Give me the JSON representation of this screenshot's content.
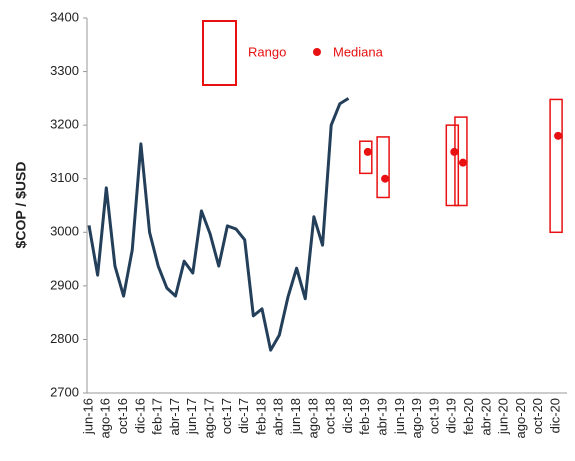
{
  "chart_data": {
    "type": "line",
    "y_label": "$COP / $USD",
    "categories": [
      "jun-16",
      null,
      "ago-16",
      null,
      "oct-16",
      null,
      "dic-16",
      null,
      "feb-17",
      null,
      "abr-17",
      null,
      "jun-17",
      null,
      "ago-17",
      null,
      "oct-17",
      null,
      "dic-17",
      null,
      "feb-18",
      null,
      "abr-18",
      null,
      "jun-18",
      null,
      "ago-18",
      null,
      "oct-18",
      null,
      "dic-18",
      null,
      "feb-19",
      null,
      "abr-19",
      null,
      "jun-19",
      null,
      "ago-19",
      null,
      "oct-19",
      null,
      "dic-19",
      null,
      "feb-20",
      null,
      "abr-20",
      null,
      "jun-20",
      null,
      "ago-20",
      null,
      "oct-20",
      null,
      "dic-20"
    ],
    "line": {
      "color": "#243f5a",
      "values": [
        3013,
        2920,
        3083,
        2937,
        2881,
        2967,
        3165,
        3000,
        2937,
        2896,
        2881,
        2946,
        2924,
        3040,
        2997,
        2937,
        3012,
        3006,
        2986,
        2844,
        2857,
        2780,
        2808,
        2879,
        2933,
        2876,
        3029,
        2976,
        3200,
        3240,
        3250,
        null,
        null,
        null,
        null,
        null,
        null,
        null,
        null,
        null,
        null,
        null,
        null,
        null,
        null,
        null,
        null,
        null,
        null,
        null,
        null,
        null,
        null,
        null,
        null
      ]
    },
    "range": {
      "name": "Rango",
      "color": "#e81010",
      "low": [
        null,
        null,
        null,
        null,
        null,
        null,
        null,
        null,
        null,
        null,
        null,
        null,
        null,
        null,
        null,
        null,
        null,
        null,
        null,
        null,
        null,
        null,
        null,
        null,
        null,
        null,
        null,
        null,
        null,
        null,
        null,
        null,
        3110,
        null,
        3065,
        null,
        null,
        null,
        null,
        null,
        null,
        null,
        3050,
        3050,
        null,
        null,
        null,
        null,
        null,
        null,
        null,
        null,
        null,
        null,
        3000
      ],
      "high": [
        null,
        null,
        null,
        null,
        null,
        null,
        null,
        null,
        null,
        null,
        null,
        null,
        null,
        null,
        null,
        null,
        null,
        null,
        null,
        null,
        null,
        null,
        null,
        null,
        null,
        null,
        null,
        null,
        null,
        null,
        null,
        null,
        3170,
        null,
        3178,
        null,
        null,
        null,
        null,
        null,
        null,
        null,
        3200,
        3215,
        null,
        null,
        null,
        null,
        null,
        null,
        null,
        null,
        null,
        null,
        3248
      ]
    },
    "median": {
      "name": "Mediana",
      "color": "#e81010",
      "values": [
        null,
        null,
        null,
        null,
        null,
        null,
        null,
        null,
        null,
        null,
        null,
        null,
        null,
        null,
        null,
        null,
        null,
        null,
        null,
        null,
        null,
        null,
        null,
        null,
        null,
        null,
        null,
        null,
        null,
        null,
        null,
        null,
        3150,
        null,
        3100,
        null,
        null,
        null,
        null,
        null,
        null,
        null,
        3150,
        3130,
        null,
        null,
        null,
        null,
        null,
        null,
        null,
        null,
        null,
        null,
        3180
      ]
    },
    "ylim": [
      2700,
      3400
    ],
    "yticks": [
      2700,
      2800,
      2900,
      3000,
      3100,
      3200,
      3300,
      3400
    ]
  }
}
